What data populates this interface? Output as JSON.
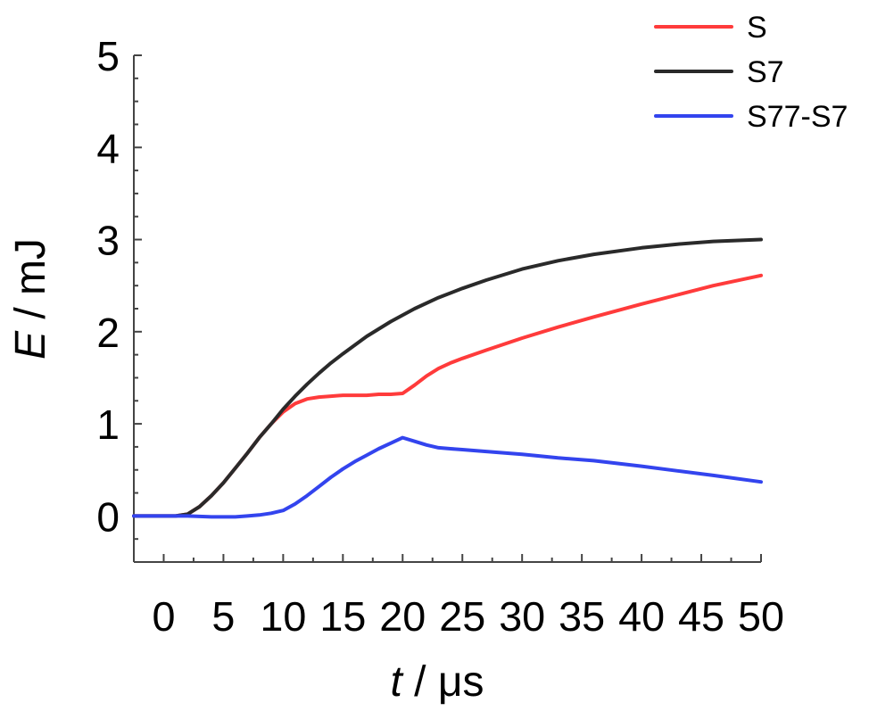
{
  "chart_data": {
    "type": "line",
    "title": "",
    "xlabel": {
      "var": "t",
      "rest": " / μs"
    },
    "ylabel": {
      "var": "E",
      "rest": " / mJ"
    },
    "xlim": [
      -2.5,
      50
    ],
    "ylim": [
      -0.5,
      5
    ],
    "xticks": [
      "0",
      "5",
      "10",
      "15",
      "20",
      "25",
      "30",
      "35",
      "40",
      "45",
      "50"
    ],
    "yticks": [
      "0",
      "1",
      "2",
      "3",
      "4",
      "5"
    ],
    "grid": false,
    "legend_position": "top-right",
    "series": [
      {
        "name": "S",
        "color": "#ff3b3b",
        "x": [
          -2.5,
          0,
          1,
          2,
          3,
          4,
          5,
          6,
          7,
          8,
          9,
          10,
          11,
          12,
          13,
          14,
          15,
          16,
          17,
          18,
          19,
          20,
          21,
          22,
          23,
          24,
          25,
          27,
          30,
          33,
          36,
          40,
          43,
          46,
          50
        ],
        "y": [
          0,
          0,
          0,
          0.02,
          0.1,
          0.22,
          0.36,
          0.52,
          0.68,
          0.85,
          1.0,
          1.13,
          1.22,
          1.27,
          1.29,
          1.3,
          1.31,
          1.31,
          1.31,
          1.32,
          1.32,
          1.33,
          1.42,
          1.52,
          1.6,
          1.66,
          1.71,
          1.8,
          1.93,
          2.05,
          2.16,
          2.3,
          2.4,
          2.5,
          2.61
        ]
      },
      {
        "name": "S7",
        "color": "#2a2a2a",
        "x": [
          -2.5,
          0,
          1,
          2,
          3,
          4,
          5,
          6,
          7,
          8,
          9,
          10,
          11,
          12,
          13,
          14,
          15,
          17,
          19,
          21,
          23,
          25,
          27,
          30,
          33,
          36,
          40,
          43,
          46,
          50
        ],
        "y": [
          0,
          0,
          0,
          0.02,
          0.1,
          0.22,
          0.36,
          0.52,
          0.68,
          0.85,
          1.0,
          1.16,
          1.3,
          1.43,
          1.55,
          1.66,
          1.76,
          1.95,
          2.11,
          2.25,
          2.37,
          2.47,
          2.56,
          2.68,
          2.77,
          2.84,
          2.91,
          2.95,
          2.98,
          3.0
        ]
      },
      {
        "name": "S77-S7",
        "color": "#3344ee",
        "x": [
          -2.5,
          0,
          2,
          4,
          5,
          6,
          7,
          8,
          9,
          10,
          11,
          12,
          13,
          14,
          15,
          16,
          17,
          18,
          19,
          20,
          21,
          22,
          23,
          24,
          25,
          27,
          30,
          33,
          36,
          40,
          43,
          46,
          50
        ],
        "y": [
          0,
          0,
          0,
          -0.01,
          -0.01,
          -0.01,
          0,
          0.01,
          0.03,
          0.06,
          0.13,
          0.22,
          0.32,
          0.42,
          0.51,
          0.59,
          0.66,
          0.73,
          0.79,
          0.85,
          0.81,
          0.77,
          0.74,
          0.73,
          0.72,
          0.7,
          0.67,
          0.63,
          0.6,
          0.54,
          0.49,
          0.44,
          0.37
        ]
      }
    ]
  }
}
